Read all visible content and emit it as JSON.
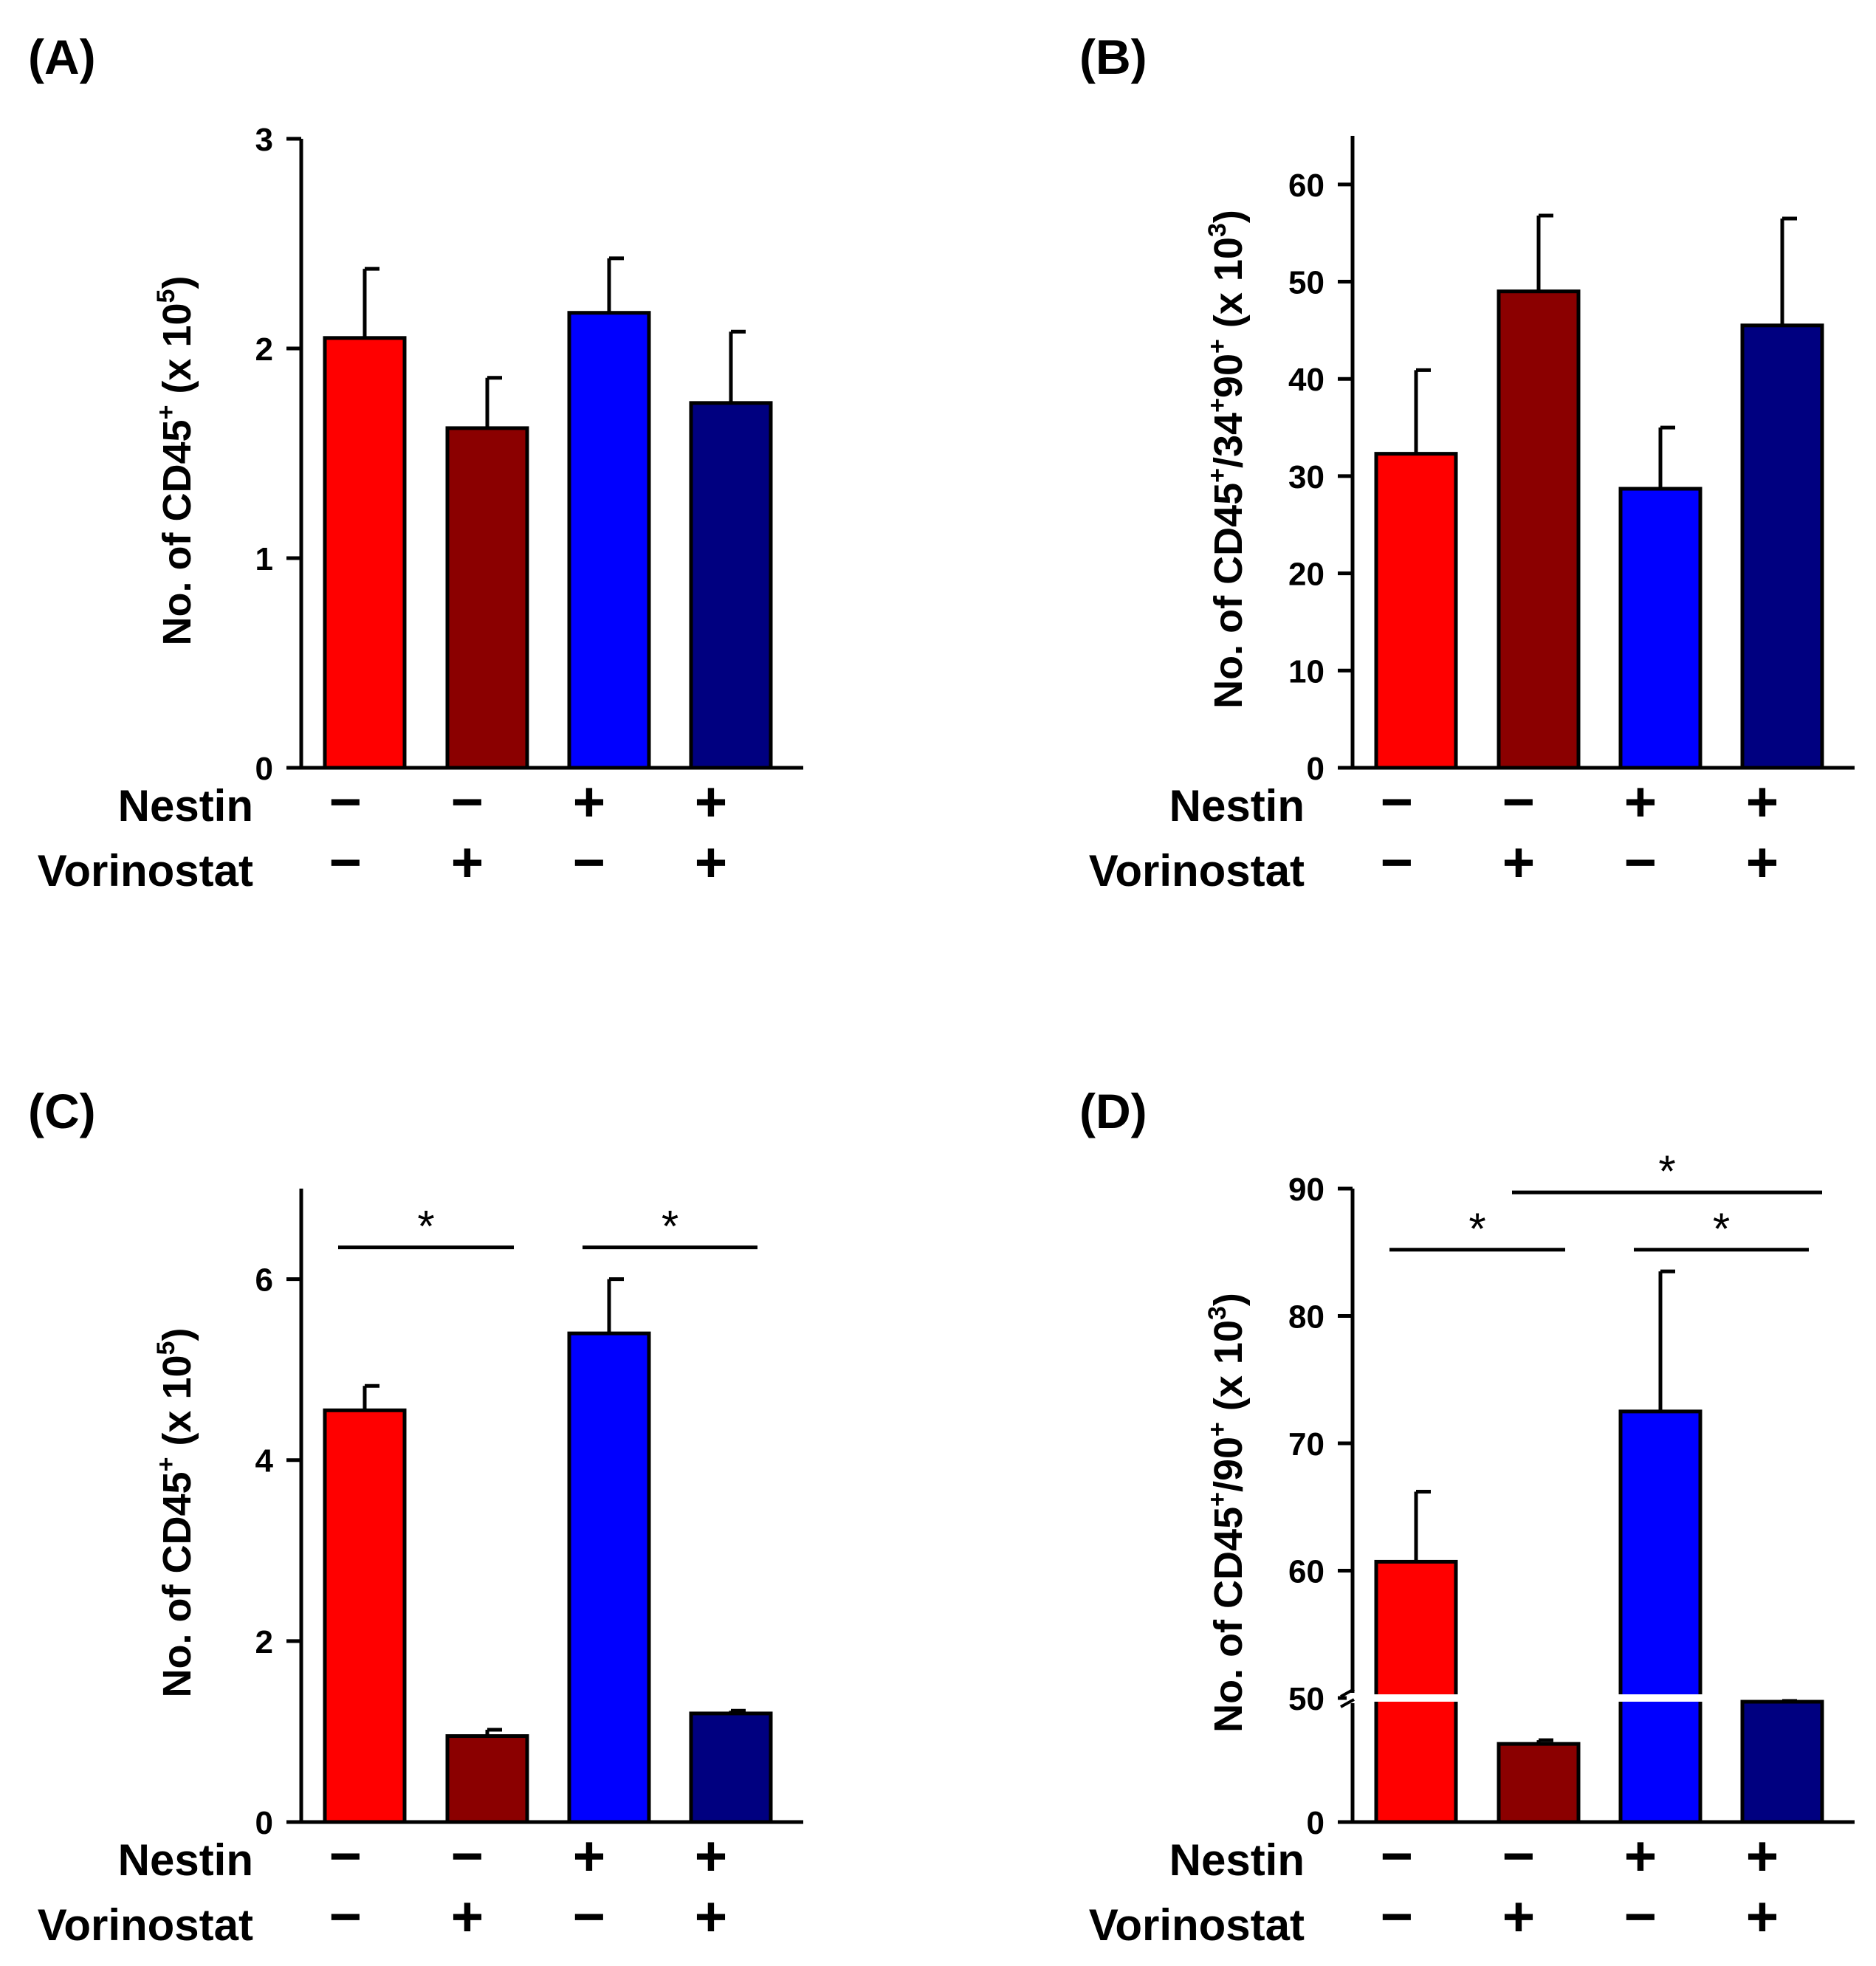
{
  "figure": {
    "row_labels": [
      "Nestin",
      "Vorinostat"
    ],
    "nestin_signs": [
      "−",
      "−",
      "+",
      "+"
    ],
    "vorinostat_signs": [
      "−",
      "+",
      "−",
      "+"
    ],
    "colors": [
      "#ff0000",
      "#8b0000",
      "#0000ff",
      "#000080"
    ]
  },
  "chart_data": [
    {
      "panel": "(A)",
      "type": "bar",
      "ylabel": {
        "main": "No. of CD45",
        "sup1": "+",
        "rest": " (x 10",
        "sup2": "5",
        "end": ")"
      },
      "categories": [
        "Nestin−/Vorinostat−",
        "Nestin−/Vorinostat+",
        "Nestin+/Vorinostat−",
        "Nestin+/Vorinostat+"
      ],
      "values": [
        2.05,
        1.62,
        2.17,
        1.74
      ],
      "errors": [
        0.33,
        0.24,
        0.26,
        0.34
      ],
      "ylim": [
        0,
        3
      ],
      "yticks": [
        0,
        1,
        2,
        3
      ],
      "significance": []
    },
    {
      "panel": "(B)",
      "type": "bar",
      "ylabel": {
        "main": "No. of CD45",
        "sup1": "+",
        "rest": "/34",
        "sup2": "+",
        "rest2": "90",
        "sup3": "+",
        "rest3": " (x 10",
        "sup4": "3",
        "end": ")"
      },
      "categories": [
        "Nestin−/Vorinostat−",
        "Nestin−/Vorinostat+",
        "Nestin+/Vorinostat−",
        "Nestin+/Vorinostat+"
      ],
      "values": [
        32.3,
        49.0,
        28.7,
        45.5
      ],
      "errors": [
        8.6,
        7.8,
        6.3,
        11.0
      ],
      "ylim": [
        0,
        65
      ],
      "yticks": [
        0,
        10,
        20,
        30,
        40,
        50,
        60
      ],
      "significance": []
    },
    {
      "panel": "(C)",
      "type": "bar",
      "ylabel": {
        "main": "No. of CD45",
        "sup1": "+",
        "rest": " (x 10",
        "sup2": "5",
        "end": ")"
      },
      "categories": [
        "Nestin−/Vorinostat−",
        "Nestin−/Vorinostat+",
        "Nestin+/Vorinostat−",
        "Nestin+/Vorinostat+"
      ],
      "values": [
        4.55,
        0.95,
        5.4,
        1.2
      ],
      "errors": [
        0.27,
        0.07,
        0.6,
        0.03
      ],
      "ylim": [
        0,
        7
      ],
      "yticks": [
        0,
        2,
        4,
        6
      ],
      "significance": [
        {
          "from": 0,
          "to": 1,
          "level": 6.35,
          "label": "*"
        },
        {
          "from": 2,
          "to": 3,
          "level": 6.35,
          "label": "*"
        }
      ]
    },
    {
      "panel": "(D)",
      "type": "bar",
      "broken_axis": {
        "lower": [
          0,
          50
        ],
        "upper": [
          50,
          90
        ],
        "break_at": 50
      },
      "ylabel": {
        "main": "No. of CD45",
        "sup1": "+",
        "rest": "/90",
        "sup2": "+",
        "rest2": " (x 10",
        "sup3": "3",
        "end": ")"
      },
      "categories": [
        "Nestin−/Vorinostat−",
        "Nestin−/Vorinostat+",
        "Nestin+/Vorinostat−",
        "Nestin+/Vorinostat+"
      ],
      "values": [
        60.7,
        31.5,
        72.5,
        48.5
      ],
      "errors": [
        5.5,
        1.5,
        11.0,
        0.3
      ],
      "yticks": [
        0,
        50,
        60,
        70,
        80,
        90
      ],
      "significance": [
        {
          "from": 0,
          "to": 1,
          "level": 85.2,
          "label": "*"
        },
        {
          "from": 1,
          "to": 3,
          "level": 89.7,
          "label": "*"
        },
        {
          "from": 2,
          "to": 3,
          "level": 85.2,
          "label": "*"
        }
      ]
    }
  ]
}
